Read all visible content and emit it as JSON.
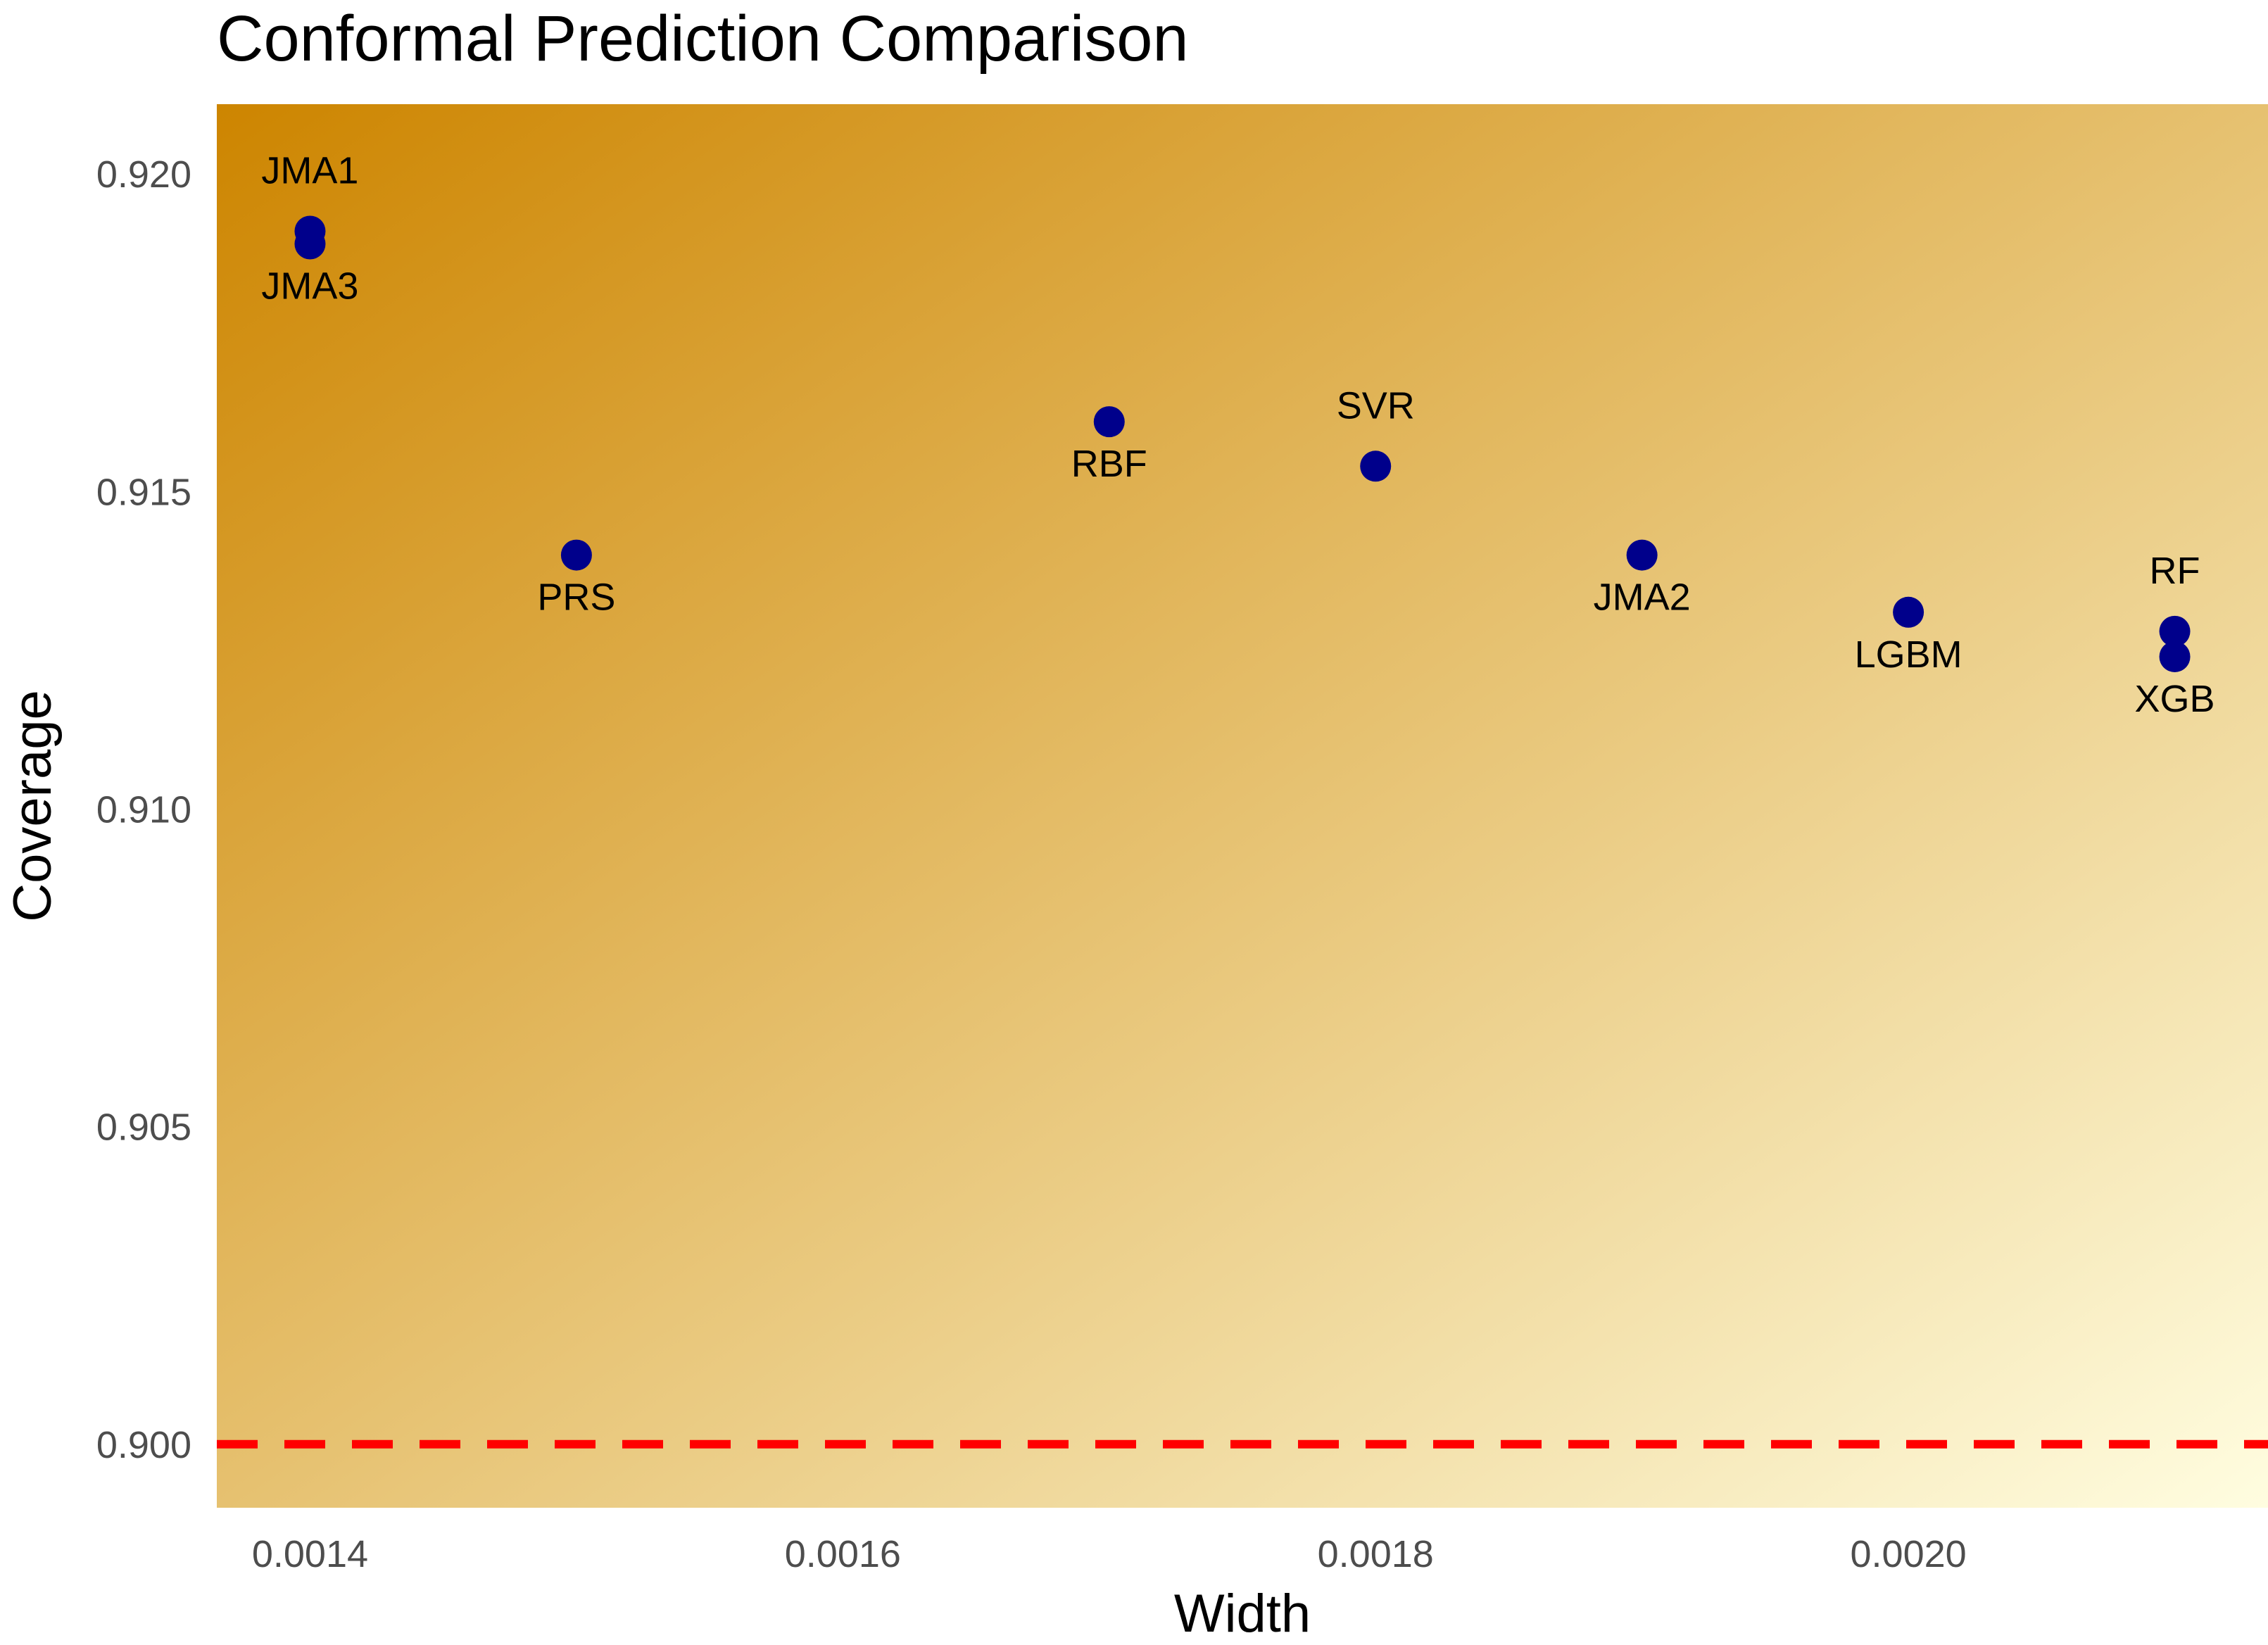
{
  "chart_data": {
    "type": "scatter",
    "title": "Conformal Prediction Comparison",
    "xlabel": "Width",
    "ylabel": "Coverage",
    "xlim": [
      0.001365,
      0.002135
    ],
    "ylim": [
      0.899,
      0.9211
    ],
    "x_ticks": [
      {
        "value": 0.0014,
        "label": "0.0014"
      },
      {
        "value": 0.0016,
        "label": "0.0016"
      },
      {
        "value": 0.0018,
        "label": "0.0018"
      },
      {
        "value": 0.002,
        "label": "0.0020"
      }
    ],
    "y_ticks": [
      {
        "value": 0.9,
        "label": "0.900"
      },
      {
        "value": 0.905,
        "label": "0.905"
      },
      {
        "value": 0.91,
        "label": "0.910"
      },
      {
        "value": 0.915,
        "label": "0.915"
      },
      {
        "value": 0.92,
        "label": "0.920"
      }
    ],
    "points": [
      {
        "label": "JMA1",
        "x": 0.0014,
        "y": 0.9191,
        "label_position": "above"
      },
      {
        "label": "JMA3",
        "x": 0.0014,
        "y": 0.9189,
        "label_position": "below"
      },
      {
        "label": "PRS",
        "x": 0.0015,
        "y": 0.914,
        "label_position": "below"
      },
      {
        "label": "RBF",
        "x": 0.0017,
        "y": 0.9161,
        "label_position": "below"
      },
      {
        "label": "SVR",
        "x": 0.0018,
        "y": 0.9154,
        "label_position": "above"
      },
      {
        "label": "JMA2",
        "x": 0.0019,
        "y": 0.914,
        "label_position": "below"
      },
      {
        "label": "LGBM",
        "x": 0.002,
        "y": 0.9131,
        "label_position": "below"
      },
      {
        "label": "RF",
        "x": 0.0021,
        "y": 0.9128,
        "label_position": "above"
      },
      {
        "label": "XGB",
        "x": 0.0021,
        "y": 0.9124,
        "label_position": "below"
      }
    ],
    "reference_line": {
      "y": 0.9,
      "style": "dashed",
      "color": "#ff0000"
    },
    "point_color": "#00008b",
    "background_gradient": {
      "from": "#cd8500",
      "to": "#fffde0",
      "direction": "top-left to bottom-right"
    },
    "grid": false,
    "legend": "none"
  }
}
